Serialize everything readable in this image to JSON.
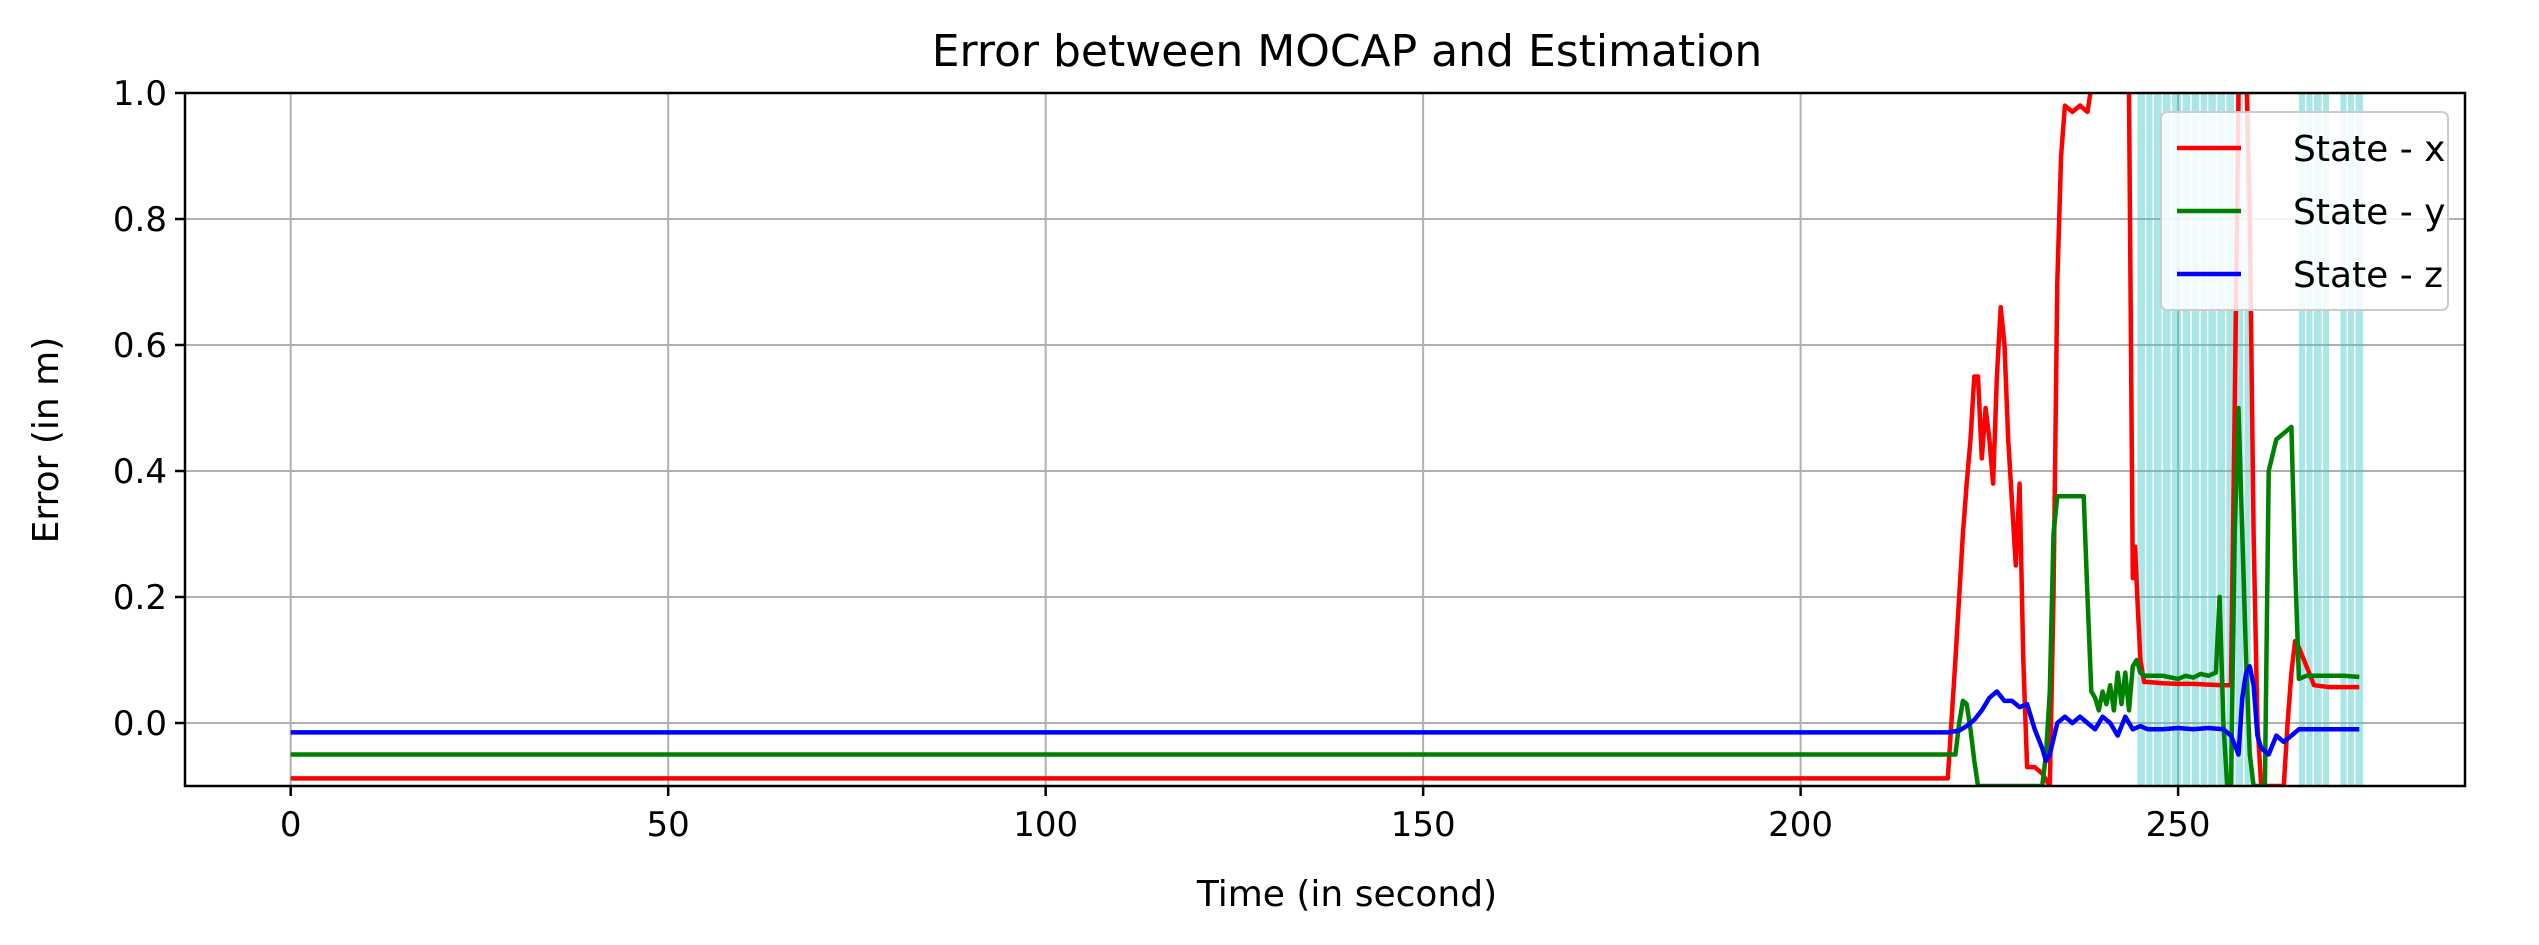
{
  "chart_data": {
    "type": "line",
    "title": "Error between MOCAP and Estimation",
    "xlabel": "Time (in second)",
    "ylabel": "Error (in m)",
    "xlim": [
      -14,
      288
    ],
    "ylim": [
      -0.1,
      1.0
    ],
    "xticks": [
      0,
      50,
      100,
      150,
      200,
      250
    ],
    "yticks": [
      0.0,
      0.2,
      0.4,
      0.6,
      0.8,
      1.0
    ],
    "xtick_labels": [
      "0",
      "50",
      "100",
      "150",
      "200",
      "250"
    ],
    "ytick_labels": [
      "0.0",
      "0.2",
      "0.4",
      "0.6",
      "0.8",
      "1.0"
    ],
    "grid": true,
    "legend_position": "top-right",
    "highlight_color": "#40c8c8",
    "highlight_bands": [
      [
        244.6,
        245.6
      ],
      [
        245.8,
        246.6
      ],
      [
        246.8,
        247.8
      ],
      [
        248.0,
        249.0
      ],
      [
        249.2,
        250.4
      ],
      [
        250.6,
        251.6
      ],
      [
        251.8,
        252.8
      ],
      [
        253.0,
        253.8
      ],
      [
        254.0,
        255.0
      ],
      [
        255.2,
        256.2
      ],
      [
        256.4,
        257.4
      ],
      [
        257.6,
        258.6
      ],
      [
        258.8,
        259.6
      ],
      [
        266.0,
        266.8
      ],
      [
        267.0,
        267.8
      ],
      [
        268.0,
        269.0
      ],
      [
        269.2,
        270.0
      ],
      [
        271.5,
        272.3
      ],
      [
        272.5,
        273.3
      ],
      [
        273.5,
        274.5
      ]
    ],
    "series": [
      {
        "name": "State - x",
        "color": "#ff0000",
        "x": [
          0,
          100,
          200,
          219.5,
          220.5,
          221.5,
          222.0,
          222.5,
          223.0,
          223.5,
          224.0,
          224.5,
          225.0,
          225.5,
          226.0,
          226.5,
          227.0,
          227.5,
          228.0,
          228.5,
          229.0,
          229.5,
          230.0,
          231.0,
          232.0,
          233.0,
          233.5,
          234.0,
          234.5,
          235.0,
          236.0,
          237.0,
          238.0,
          239.0,
          240.0,
          241.0,
          242.0,
          243.0,
          243.5,
          244.0,
          244.3,
          244.6,
          245.0,
          245.5,
          246.0,
          248.0,
          250.0,
          252.0,
          254.0,
          256.0,
          257.0,
          257.5,
          258.0,
          258.5,
          259.0,
          259.5,
          260.0,
          260.5,
          261.0,
          261.5,
          262.0,
          263.0,
          264.0,
          264.5,
          265.0,
          265.5,
          266.0,
          267.0,
          268.0,
          270.0,
          272.0,
          274.0
        ],
        "y": [
          -0.088,
          -0.088,
          -0.088,
          -0.088,
          0.1,
          0.3,
          0.38,
          0.45,
          0.55,
          0.55,
          0.42,
          0.5,
          0.45,
          0.38,
          0.55,
          0.66,
          0.6,
          0.45,
          0.35,
          0.25,
          0.38,
          0.1,
          -0.07,
          -0.07,
          -0.08,
          -0.1,
          0.2,
          0.7,
          0.9,
          0.98,
          0.97,
          0.98,
          0.97,
          1.05,
          1.05,
          1.05,
          1.05,
          1.05,
          1.0,
          0.23,
          0.28,
          0.2,
          0.1,
          0.065,
          0.065,
          0.063,
          0.062,
          0.062,
          0.061,
          0.06,
          0.06,
          0.5,
          1.0,
          1.05,
          1.05,
          0.8,
          0.3,
          0.0,
          -0.1,
          -0.1,
          -0.1,
          -0.1,
          -0.1,
          0.0,
          0.08,
          0.13,
          0.12,
          0.09,
          0.06,
          0.057,
          0.057,
          0.057
        ]
      },
      {
        "name": "State - y",
        "color": "#008000",
        "x": [
          0,
          100,
          200,
          219.5,
          220.5,
          221.0,
          221.5,
          222.0,
          222.5,
          223.0,
          223.5,
          224.0,
          232.0,
          232.5,
          233.0,
          233.5,
          234.0,
          234.5,
          236.0,
          237.5,
          238.0,
          238.5,
          239.0,
          239.5,
          240.0,
          240.5,
          241.0,
          241.5,
          242.0,
          242.5,
          243.0,
          243.5,
          244.0,
          244.5,
          245.0,
          245.5,
          246.0,
          248.0,
          250.0,
          251.0,
          252.0,
          253.0,
          254.0,
          255.0,
          255.5,
          256.0,
          256.5,
          257.0,
          257.5,
          258.0,
          258.5,
          259.0,
          259.5,
          260.0,
          260.5,
          261.0,
          261.5,
          262.0,
          263.0,
          264.0,
          265.0,
          265.5,
          266.0,
          267.0,
          270.0,
          272.0,
          274.0
        ],
        "y": [
          -0.05,
          -0.05,
          -0.05,
          -0.05,
          -0.05,
          0.0,
          0.035,
          0.03,
          -0.01,
          -0.06,
          -0.1,
          -0.1,
          -0.1,
          -0.05,
          0.05,
          0.3,
          0.36,
          0.36,
          0.36,
          0.36,
          0.2,
          0.05,
          0.04,
          0.02,
          0.05,
          0.03,
          0.06,
          0.02,
          0.08,
          0.03,
          0.08,
          0.02,
          0.09,
          0.1,
          0.08,
          0.075,
          0.075,
          0.075,
          0.07,
          0.075,
          0.072,
          0.078,
          0.075,
          0.08,
          0.2,
          0.0,
          -0.1,
          -0.1,
          0.3,
          0.5,
          0.3,
          0.1,
          -0.05,
          -0.1,
          -0.1,
          -0.1,
          -0.1,
          0.4,
          0.45,
          0.46,
          0.47,
          0.25,
          0.07,
          0.075,
          0.075,
          0.075,
          0.073
        ]
      },
      {
        "name": "State - z",
        "color": "#0000ff",
        "x": [
          0,
          100,
          200,
          219.5,
          221.0,
          222.0,
          223.0,
          224.0,
          225.0,
          226.0,
          227.0,
          228.0,
          229.0,
          230.0,
          231.0,
          232.0,
          232.5,
          233.0,
          234.0,
          235.0,
          236.0,
          237.0,
          238.0,
          239.0,
          240.0,
          241.0,
          242.0,
          243.0,
          244.0,
          245.0,
          246.0,
          248.0,
          250.0,
          252.0,
          254.0,
          256.0,
          257.0,
          258.0,
          258.5,
          259.0,
          259.5,
          260.0,
          260.5,
          261.0,
          262.0,
          263.0,
          264.0,
          265.0,
          266.0,
          270.0,
          274.0
        ],
        "y": [
          -0.015,
          -0.015,
          -0.015,
          -0.015,
          -0.012,
          -0.005,
          0.005,
          0.02,
          0.04,
          0.05,
          0.035,
          0.035,
          0.025,
          0.03,
          -0.01,
          -0.04,
          -0.06,
          -0.05,
          0.0,
          0.01,
          0.0,
          0.01,
          0.0,
          -0.01,
          0.01,
          0.0,
          -0.02,
          0.01,
          -0.01,
          -0.005,
          -0.01,
          -0.01,
          -0.008,
          -0.01,
          -0.008,
          -0.01,
          -0.02,
          -0.05,
          0.04,
          0.08,
          0.09,
          0.06,
          -0.02,
          -0.04,
          -0.05,
          -0.02,
          -0.03,
          -0.02,
          -0.01,
          -0.01,
          -0.01
        ]
      }
    ]
  }
}
